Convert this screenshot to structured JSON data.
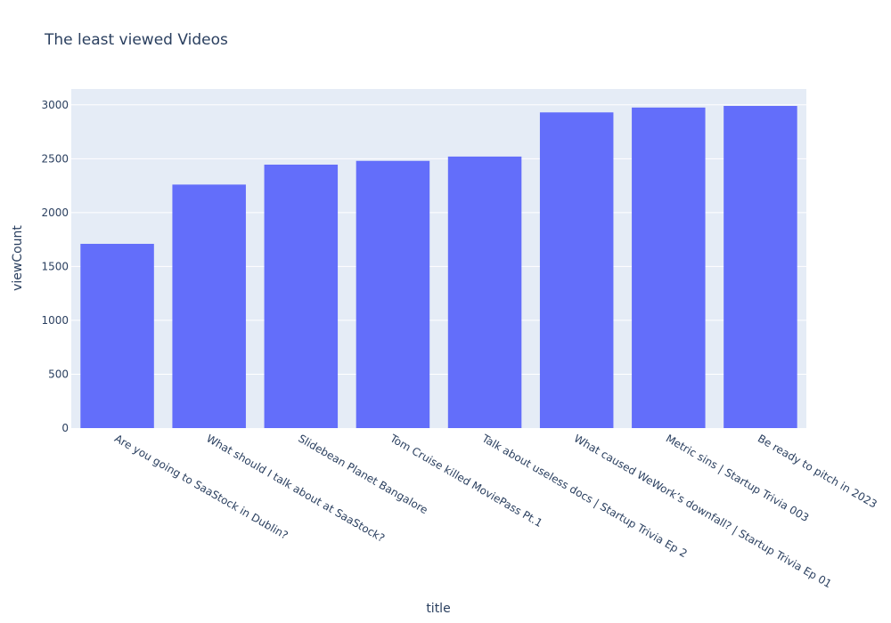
{
  "chart_data": {
    "type": "bar",
    "title": "The least viewed Videos",
    "xlabel": "title",
    "ylabel": "viewCount",
    "categories": [
      "Are you going to SaaStock in Dublin?",
      "What should I talk about at SaaStock?",
      "Slidebean Planet Bangalore",
      "Tom Cruise killed MoviePass Pt.1",
      "Talk about useless docs | Startup Trivia Ep 2",
      "What caused WeWork’s downfall? | Startup Trivia Ep 01",
      "Metric sins | Startup Trivia 003",
      "Be ready to pitch in 2023"
    ],
    "values": [
      1710,
      2260,
      2445,
      2480,
      2520,
      2930,
      2975,
      2990
    ],
    "ylim": [
      0,
      3147
    ],
    "yticks": [
      0,
      500,
      1000,
      1500,
      2000,
      2500,
      3000
    ],
    "grid": true,
    "colors": {
      "bar": "#636efa",
      "plot_background": "#e5ecf6",
      "grid": "#ffffff",
      "text": "#2a3f5f"
    }
  }
}
